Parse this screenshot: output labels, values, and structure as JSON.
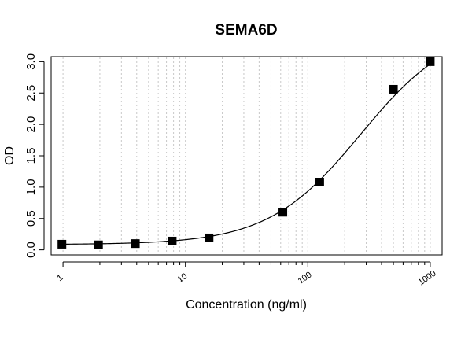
{
  "chart_data": {
    "type": "scatter",
    "title": "SEMA6D",
    "xlabel": "Concentration (ng/ml)",
    "ylabel": "OD",
    "x_scale": "log",
    "xlim": [
      0.8,
      1250
    ],
    "ylim": [
      -0.08,
      3.08
    ],
    "x_ticks": [
      1,
      10,
      100,
      1000
    ],
    "x_tick_labels": [
      "1",
      "10",
      "100",
      "1000"
    ],
    "y_ticks": [
      0.0,
      0.5,
      1.0,
      1.5,
      2.0,
      2.5,
      3.0
    ],
    "y_tick_labels": [
      "0.0",
      "0.5",
      "1.0",
      "1.5",
      "2.0",
      "2.5",
      "3.0"
    ],
    "grid": "vertical dotted at log minor ticks",
    "legend": "none",
    "series": [
      {
        "marker": "square",
        "color": "#000000",
        "points": [
          {
            "x": 0.98,
            "y": 0.09
          },
          {
            "x": 1.95,
            "y": 0.08
          },
          {
            "x": 3.9,
            "y": 0.1
          },
          {
            "x": 7.8,
            "y": 0.14
          },
          {
            "x": 15.6,
            "y": 0.19
          },
          {
            "x": 62.5,
            "y": 0.6
          },
          {
            "x": 125,
            "y": 1.08
          },
          {
            "x": 500,
            "y": 2.56
          },
          {
            "x": 1000,
            "y": 3.0
          }
        ]
      }
    ],
    "fit_curve": {
      "model": "4PL",
      "color": "#000000",
      "bottom": 0.085,
      "top": 3.6,
      "ec50": 270,
      "hill": 1.15
    }
  }
}
